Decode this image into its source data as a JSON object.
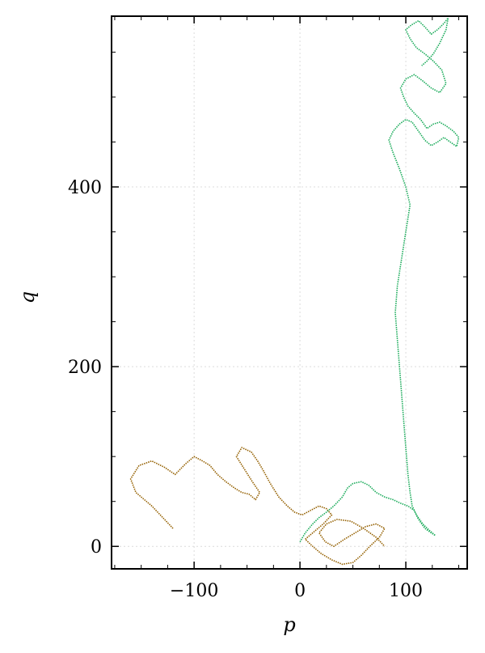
{
  "chart_data": {
    "type": "line",
    "title": "",
    "xlabel": "p",
    "ylabel": "q",
    "xlim": [
      -178,
      158
    ],
    "ylim": [
      -25,
      590
    ],
    "x_ticks": [
      -100,
      0,
      100
    ],
    "y_ticks": [
      0,
      200,
      400
    ],
    "x_tick_labels": [
      "−100",
      "0",
      "100"
    ],
    "y_tick_labels": [
      "0",
      "200",
      "400"
    ],
    "grid": true,
    "legend": "none",
    "series": [
      {
        "color": "#946000",
        "x": [
          -120,
          -128,
          -140,
          -155,
          -160,
          -152,
          -140,
          -128,
          -118,
          -108,
          -100,
          -92,
          -85,
          -78,
          -70,
          -62,
          -55,
          -48,
          -42,
          -38,
          -45,
          -52,
          -60,
          -55,
          -46,
          -40,
          -35,
          -28,
          -20,
          -12,
          -5,
          2,
          10,
          18,
          25,
          30,
          22,
          12,
          5,
          12,
          20,
          30,
          40,
          50,
          58,
          66,
          75,
          80,
          72,
          62,
          52,
          42,
          32,
          24,
          18,
          25,
          35,
          48,
          60,
          72,
          80
        ],
        "y": [
          20,
          30,
          45,
          60,
          75,
          90,
          95,
          88,
          80,
          92,
          100,
          95,
          90,
          80,
          72,
          65,
          60,
          58,
          52,
          60,
          72,
          85,
          100,
          110,
          105,
          95,
          85,
          70,
          55,
          45,
          38,
          35,
          40,
          45,
          42,
          35,
          25,
          15,
          8,
          0,
          -8,
          -15,
          -20,
          -18,
          -10,
          0,
          10,
          20,
          25,
          22,
          15,
          8,
          0,
          5,
          15,
          25,
          30,
          28,
          20,
          10,
          0
        ]
      },
      {
        "color": "#1aab5a",
        "x": [
          0,
          5,
          12,
          18,
          25,
          32,
          40,
          45,
          50,
          58,
          65,
          72,
          80,
          88,
          95,
          102,
          108,
          112,
          118,
          124,
          128,
          122,
          116,
          110,
          106,
          104,
          102,
          100,
          98,
          96,
          94,
          92,
          90,
          92,
          96,
          100,
          104,
          100,
          94,
          88,
          84,
          88,
          94,
          100,
          106,
          112,
          118,
          124,
          130,
          136,
          142,
          148,
          150,
          145,
          138,
          132,
          126,
          120,
          114,
          108,
          102,
          98,
          95,
          100,
          108,
          116,
          124,
          132,
          138,
          134,
          126,
          118,
          110,
          104,
          100,
          105,
          112,
          118,
          124,
          130,
          136,
          140,
          138,
          132,
          126,
          120,
          115
        ],
        "y": [
          5,
          15,
          25,
          32,
          38,
          45,
          55,
          65,
          70,
          72,
          68,
          60,
          55,
          52,
          48,
          45,
          40,
          30,
          20,
          15,
          12,
          18,
          25,
          35,
          45,
          60,
          80,
          110,
          140,
          170,
          200,
          230,
          260,
          290,
          320,
          350,
          380,
          400,
          420,
          438,
          452,
          462,
          470,
          475,
          472,
          462,
          452,
          446,
          450,
          455,
          450,
          445,
          455,
          462,
          468,
          472,
          470,
          465,
          475,
          482,
          490,
          500,
          510,
          520,
          525,
          518,
          510,
          505,
          515,
          530,
          540,
          548,
          555,
          565,
          575,
          580,
          585,
          578,
          570,
          575,
          582,
          588,
          575,
          560,
          548,
          540,
          535
        ]
      }
    ]
  }
}
